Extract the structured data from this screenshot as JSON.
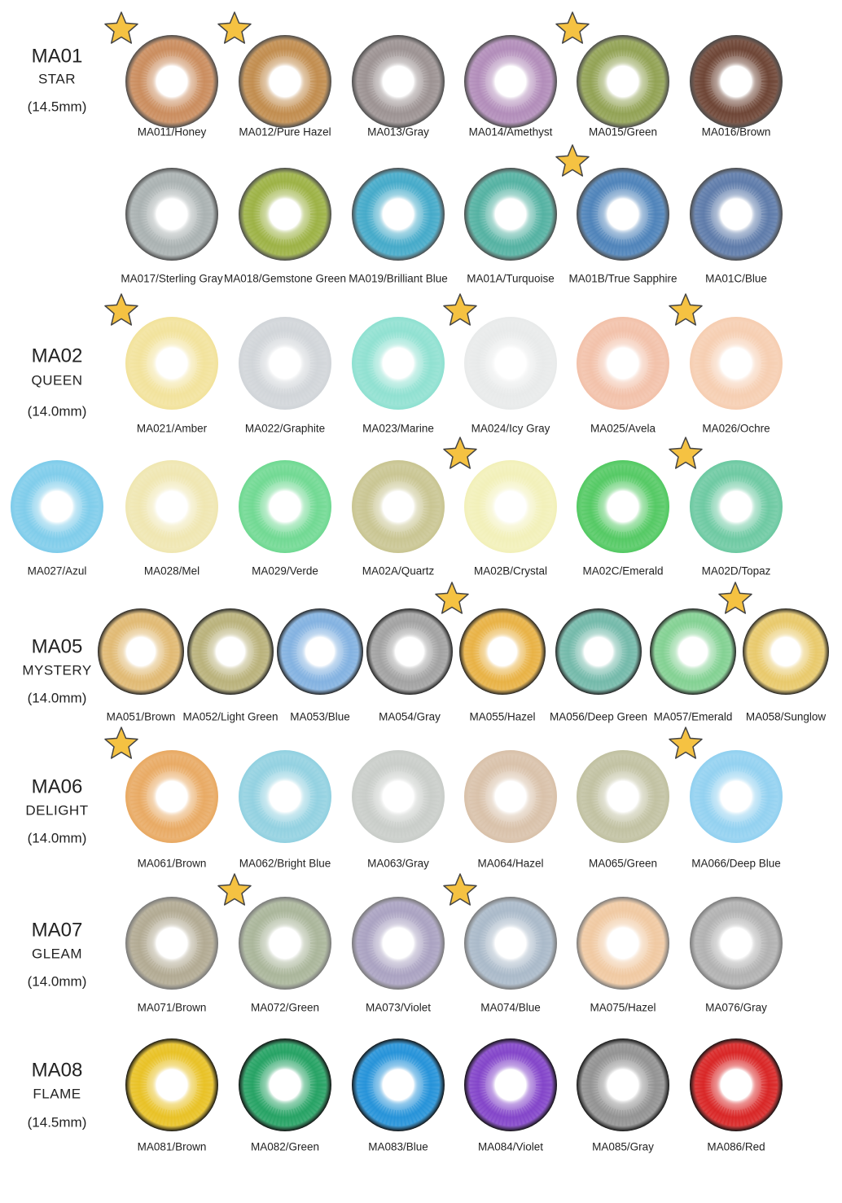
{
  "sections": [
    {
      "code": "MA01",
      "name": "STAR",
      "size": "(14.5mm)",
      "edge": "#4a4a4a",
      "rows": [
        [
          {
            "label": "MA011/Honey",
            "color": "#c98a5a",
            "star": true
          },
          {
            "label": "MA012/Pure Hazel",
            "color": "#c08a4a",
            "star": true
          },
          {
            "label": "MA013/Gray",
            "color": "#9a9090"
          },
          {
            "label": "MA014/Amethyst",
            "color": "#b08ab8"
          },
          {
            "label": "MA015/Green",
            "color": "#8fa050",
            "star": true
          },
          {
            "label": "MA016/Brown",
            "color": "#6a4030"
          }
        ],
        [
          {
            "label": "MA017/Sterling Gray",
            "color": "#a8b0b0"
          },
          {
            "label": "MA018/Gemstone Green",
            "color": "#9ab040"
          },
          {
            "label": "MA019/Brilliant Blue",
            "color": "#40a8c8"
          },
          {
            "label": "MA01A/Turquoise",
            "color": "#50b0a0"
          },
          {
            "label": "MA01B/True Sapphire",
            "color": "#4a80b8",
            "star": true
          },
          {
            "label": "MA01C/Blue",
            "color": "#5a78a8"
          }
        ]
      ]
    },
    {
      "code": "MA02",
      "name": "QUEEN",
      "size": "(14.0mm)",
      "rows": [
        [
          {
            "label": "MA021/Amber",
            "color": "#f2e29a",
            "star": true
          },
          {
            "label": "MA022/Graphite",
            "color": "#d0d4d8"
          },
          {
            "label": "MA023/Marine",
            "color": "#8de0d0"
          },
          {
            "label": "MA024/Icy Gray",
            "color": "#e8eaea",
            "star": true
          },
          {
            "label": "MA025/Avela",
            "color": "#f2c0a8"
          },
          {
            "label": "MA026/Ochre",
            "color": "#f6cdb0",
            "star": true
          }
        ],
        [
          {
            "label": "MA027/Azul",
            "color": "#7ccbea"
          },
          {
            "label": "MA028/Mel",
            "color": "#efe6b0"
          },
          {
            "label": "MA029/Verde",
            "color": "#6dd890"
          },
          {
            "label": "MA02A/Quartz",
            "color": "#c8c490"
          },
          {
            "label": "MA02B/Crystal",
            "color": "#f2f0b8",
            "star": true
          },
          {
            "label": "MA02C/Emerald",
            "color": "#50c860"
          },
          {
            "label": "MA02D/Topaz",
            "color": "#6ac8a0",
            "star": true
          }
        ]
      ]
    },
    {
      "code": "MA05",
      "name": "MYSTERY",
      "size": "(14.0mm)",
      "edge": "#222222",
      "rows": [
        [
          {
            "label": "MA051/Brown",
            "color": "#e0b870"
          },
          {
            "label": "MA052/Light Green",
            "color": "#b8b078"
          },
          {
            "label": "MA053/Blue",
            "color": "#80b0e0"
          },
          {
            "label": "MA054/Gray",
            "color": "#a0a0a0"
          },
          {
            "label": "MA055/Hazel",
            "color": "#e8b040",
            "star": true
          },
          {
            "label": "MA056/Deep Green",
            "color": "#70b8a8"
          },
          {
            "label": "MA057/Emerald",
            "color": "#80d090"
          },
          {
            "label": "MA058/Sunglow",
            "color": "#e8c868",
            "star": true
          }
        ]
      ]
    },
    {
      "code": "MA06",
      "name": "DELIGHT",
      "size": "(14.0mm)",
      "rows": [
        [
          {
            "label": "MA061/Brown",
            "color": "#e8a860",
            "star": true
          },
          {
            "label": "MA062/Bright Blue",
            "color": "#90d0e0"
          },
          {
            "label": "MA063/Gray",
            "color": "#c8ccc8"
          },
          {
            "label": "MA064/Hazel",
            "color": "#d8c0a8"
          },
          {
            "label": "MA065/Green",
            "color": "#c0c0a0"
          },
          {
            "label": "MA066/Deep Blue",
            "color": "#90d0f0",
            "star": true
          }
        ]
      ]
    },
    {
      "code": "MA07",
      "name": "GLEAM",
      "size": "(14.0mm)",
      "edge": "#777777",
      "rows": [
        [
          {
            "label": "MA071/Brown",
            "color": "#b0a890"
          },
          {
            "label": "MA072/Green",
            "color": "#a8b498",
            "star": true
          },
          {
            "label": "MA073/Violet",
            "color": "#a8a0c0"
          },
          {
            "label": "MA074/Blue",
            "color": "#a8b8c8",
            "star": true
          },
          {
            "label": "MA075/Hazel",
            "color": "#f0c8a0"
          },
          {
            "label": "MA076/Gray",
            "color": "#b0b0b0"
          }
        ]
      ]
    },
    {
      "code": "MA08",
      "name": "FLAME",
      "size": "(14.5mm)",
      "edge": "#111111",
      "rows": [
        [
          {
            "label": "MA081/Brown",
            "color": "#e8c020"
          },
          {
            "label": "MA082/Green",
            "color": "#20a060"
          },
          {
            "label": "MA083/Blue",
            "color": "#2090d8"
          },
          {
            "label": "MA084/Violet",
            "color": "#8040c8"
          },
          {
            "label": "MA085/Gray",
            "color": "#909090"
          },
          {
            "label": "MA086/Red",
            "color": "#d82020"
          }
        ]
      ]
    }
  ]
}
